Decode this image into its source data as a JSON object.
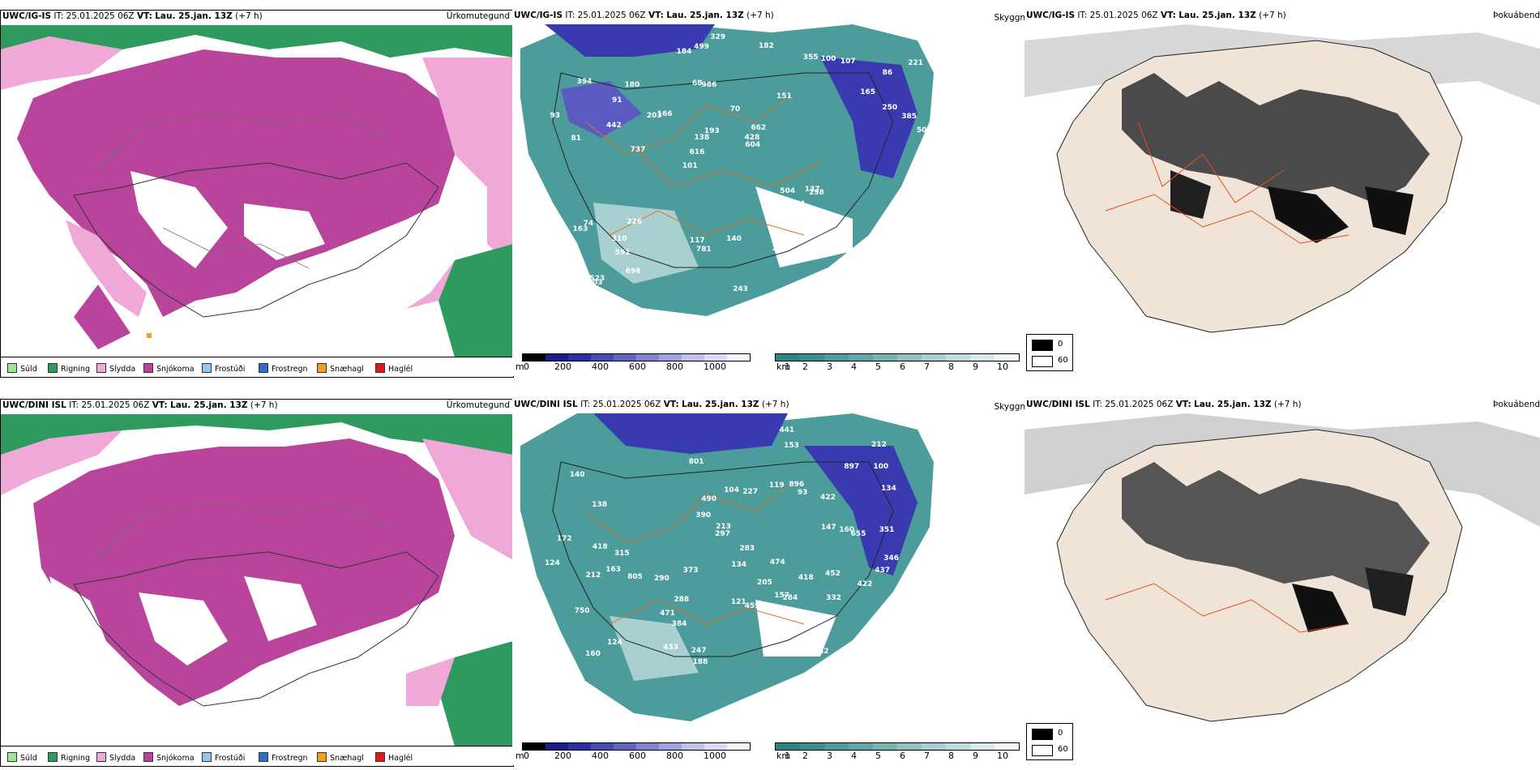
{
  "top": {
    "left": {
      "model": "UWC/IG-IS",
      "it_label": "IT:",
      "it_value": "25.01.2025 06Z",
      "vt_label": "VT:",
      "vt_value": "Lau. 25.jan. 13Z",
      "lead": "(+7 h)",
      "right": "Úrkomutegund"
    },
    "middle": {
      "model": "UWC/IG-IS",
      "it_label": "IT:",
      "it_value": "25.01.2025 06Z",
      "vt_label": "VT:",
      "vt_value": "Lau. 25.jan. 13Z",
      "lead": "(+7 h)",
      "right": "Skyggni"
    },
    "right": {
      "model": "UWC/IG-IS",
      "it_label": "IT:",
      "it_value": "25.01.2025 06Z",
      "vt_label": "VT:",
      "vt_value": "Lau. 25.jan. 13Z",
      "lead": "(+7 h)",
      "right": "Þokuábendi"
    }
  },
  "bottom": {
    "left": {
      "model": "UWC/DINI ISL",
      "it_label": "IT:",
      "it_value": "25.01.2025 06Z",
      "vt_label": "VT:",
      "vt_value": "Lau. 25.jan. 13Z",
      "lead": "(+7 h)",
      "right": "Úrkomutegund"
    },
    "middle": {
      "model": "UWC/DINI ISL",
      "it_label": "IT:",
      "it_value": "25.01.2025 06Z",
      "vt_label": "VT:",
      "vt_value": "Lau. 25.jan. 13Z",
      "lead": "(+7 h)",
      "right": "Skyggni"
    },
    "right": {
      "model": "UWC/DINI ISL",
      "it_label": "IT:",
      "it_value": "25.01.2025 06Z",
      "vt_label": "VT:",
      "vt_value": "Lau. 25.jan. 13Z",
      "lead": "(+7 h)",
      "right": "Þokuábendi"
    }
  },
  "precip_legend": [
    {
      "label": "Súld",
      "color": "#9be89b"
    },
    {
      "label": "Rigning",
      "color": "#2f9a5e"
    },
    {
      "label": "Slydda",
      "color": "#f0a8d8"
    },
    {
      "label": "Snjókoma",
      "color": "#b8449c"
    },
    {
      "label": "Frostúði",
      "color": "#9cc4f0"
    },
    {
      "label": "Frostregn",
      "color": "#2e6fc0"
    },
    {
      "label": "Snæhagl",
      "color": "#f0a020"
    },
    {
      "label": "Haglél",
      "color": "#e01818"
    }
  ],
  "ceiling_bar": {
    "unit": "m",
    "ticks": [
      "0",
      "200",
      "400",
      "600",
      "800",
      "1000"
    ],
    "colors": [
      "#000000",
      "#1a1a8c",
      "#2e2ea8",
      "#4848b8",
      "#6464c4",
      "#8282d0",
      "#a0a0dc",
      "#c0c0e8",
      "#dcdcf4",
      "#f4f4fc"
    ]
  },
  "visibility_bar": {
    "unit": "km",
    "ticks": [
      "1",
      "2",
      "3",
      "4",
      "5",
      "6",
      "7",
      "8",
      "9",
      "10"
    ],
    "colors": [
      "#2a8484",
      "#3a9090",
      "#4c9c9c",
      "#60a8a8",
      "#78b4b4",
      "#90c2c2",
      "#a8d0d0",
      "#c0dcdc",
      "#d8e8e8",
      "#f0f6f6"
    ]
  },
  "fog_legend": [
    {
      "label": "0",
      "color": "#000000"
    },
    {
      "label": "60",
      "color": "#ffffff"
    }
  ],
  "ceiling_labels_top": [
    "186",
    "81",
    "86",
    "101",
    "151",
    "523",
    "68",
    "70",
    "74",
    "166",
    "152",
    "591",
    "986",
    "662",
    "298",
    "394",
    "499",
    "505",
    "504",
    "250",
    "616",
    "117",
    "138",
    "180",
    "355",
    "226",
    "289",
    "353",
    "137",
    "243",
    "203",
    "442",
    "427",
    "696",
    "385",
    "428",
    "499",
    "781",
    "604",
    "163",
    "165",
    "221",
    "154",
    "229",
    "310",
    "227",
    "214",
    "140",
    "107",
    "329",
    "737",
    "93",
    "91",
    "100",
    "103",
    "182",
    "184",
    "193"
  ],
  "ceiling_labels_bottom": [
    "93",
    "163",
    "157",
    "140",
    "138",
    "138",
    "124",
    "290",
    "422",
    "104",
    "93",
    "528",
    "384",
    "801",
    "474",
    "750",
    "452",
    "283",
    "172",
    "160",
    "212",
    "227",
    "160",
    "318",
    "346",
    "418",
    "805",
    "134",
    "297",
    "100",
    "284",
    "212",
    "471",
    "896",
    "490",
    "422",
    "437",
    "382",
    "897",
    "416",
    "288",
    "459",
    "433",
    "441",
    "373",
    "315",
    "134",
    "153",
    "119",
    "121",
    "418",
    "351",
    "332",
    "655",
    "390",
    "124",
    "188",
    "213",
    "205",
    "147",
    "247"
  ]
}
